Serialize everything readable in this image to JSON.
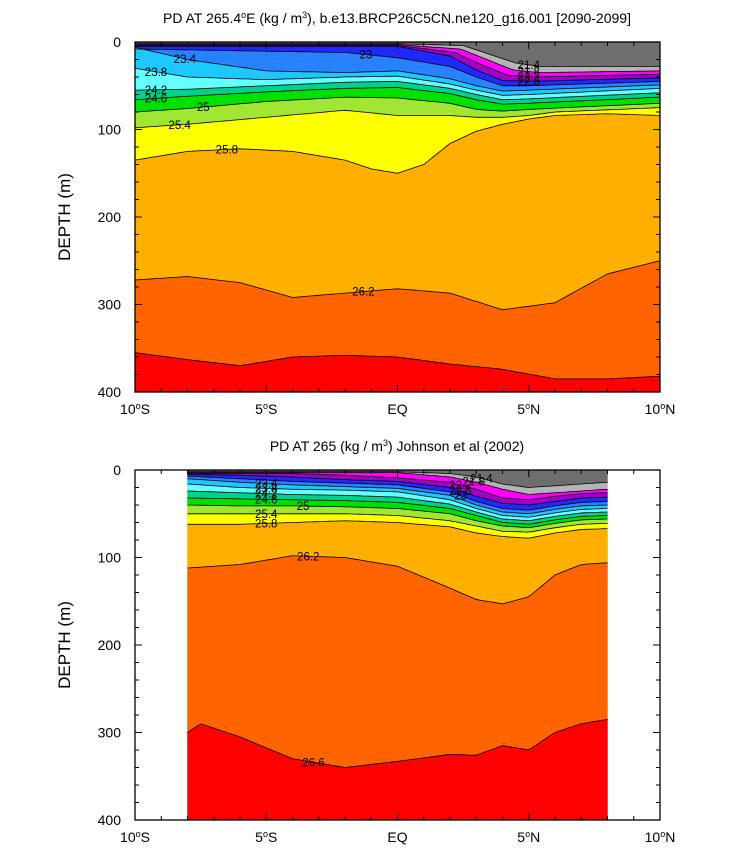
{
  "chart_data": [
    {
      "type": "contour",
      "title_main": "PD AT 265.4",
      "title_deg": "o",
      "title_rest_a": "E (kg / m",
      "title_sup": "3",
      "title_rest_b": "), b.e13.BRCP26C5CN.ne120_g16.001 [2090-2099]",
      "ylabel": "DEPTH (m)",
      "xlim": [
        -10,
        10
      ],
      "ylim": [
        0,
        400
      ],
      "x_ticks": [
        {
          "value": -10,
          "label": "10",
          "suffix": "S"
        },
        {
          "value": -5,
          "label": "5",
          "suffix": "S"
        },
        {
          "value": 0,
          "label": "EQ",
          "suffix": ""
        },
        {
          "value": 5,
          "label": "5",
          "suffix": "N"
        },
        {
          "value": 10,
          "label": "10",
          "suffix": "N"
        }
      ],
      "y_ticks": [
        0,
        100,
        200,
        300,
        400
      ],
      "data_xrange": [
        -10,
        10
      ],
      "contour_levels": [
        21.4,
        21.8,
        22.2,
        22.6,
        23.0,
        23.4,
        23.8,
        24.2,
        24.6,
        25.0,
        25.4,
        25.8,
        26.2,
        26.6
      ],
      "contours": [
        {
          "level": 21.4,
          "x": [
            -10,
            0,
            2.5,
            3.5,
            4.5,
            5.5,
            10
          ],
          "depth": [
            2,
            2,
            4,
            14,
            24,
            28,
            28
          ],
          "label": "21.4",
          "label_x": 5.0
        },
        {
          "level": 21.8,
          "x": [
            -10,
            0,
            2.4,
            3.4,
            4.4,
            5.4,
            10
          ],
          "depth": [
            3,
            3,
            8,
            20,
            32,
            35,
            33
          ],
          "label": "21.8",
          "label_x": 5.0
        },
        {
          "level": 22.2,
          "x": [
            -10,
            0,
            2.2,
            3.2,
            4.2,
            5.2,
            10
          ],
          "depth": [
            4,
            4,
            12,
            26,
            38,
            40,
            37
          ],
          "label": "22.2",
          "label_x": 5.0
        },
        {
          "level": 22.6,
          "x": [
            -10,
            0,
            2.0,
            3.0,
            4.0,
            5.0,
            10
          ],
          "depth": [
            5,
            5,
            16,
            32,
            44,
            45,
            41
          ],
          "label": "22.6",
          "label_x": 5.0
        },
        {
          "level": 23.0,
          "x": [
            -10,
            -2,
            0,
            2,
            3,
            4,
            5,
            10
          ],
          "depth": [
            8,
            12,
            18,
            28,
            40,
            50,
            50,
            45
          ],
          "label": "23",
          "label_x": -1.2
        },
        {
          "level": 23.4,
          "x": [
            -10,
            -8,
            -5,
            -2,
            0,
            2,
            3,
            4,
            5,
            10
          ],
          "depth": [
            6,
            20,
            33,
            35,
            33,
            42,
            50,
            56,
            55,
            49
          ],
          "label": "23.4",
          "label_x": -8.1
        },
        {
          "level": 23.8,
          "x": [
            -10,
            -8,
            -5,
            -2,
            0,
            2,
            3,
            4,
            5,
            10
          ],
          "depth": [
            30,
            40,
            43,
            40,
            39,
            48,
            55,
            61,
            60,
            53
          ],
          "label": "23.8",
          "label_x": -9.2
        },
        {
          "level": 24.2,
          "x": [
            -10,
            -8,
            -5,
            -2,
            0,
            2,
            3,
            4,
            5,
            10
          ],
          "depth": [
            55,
            54,
            50,
            46,
            45,
            53,
            60,
            66,
            65,
            58
          ],
          "label": "24.2",
          "label_x": -9.2
        },
        {
          "level": 24.6,
          "x": [
            -10,
            -8,
            -5,
            -2,
            0,
            2,
            3,
            4,
            5,
            10
          ],
          "depth": [
            66,
            62,
            57,
            53,
            52,
            59,
            66,
            71,
            70,
            63
          ],
          "label": "24.6",
          "label_x": -9.2
        },
        {
          "level": 25.0,
          "x": [
            -10,
            -8,
            -5,
            -2,
            0,
            2,
            3,
            4,
            5,
            10
          ],
          "depth": [
            80,
            76,
            68,
            63,
            64,
            70,
            77,
            79,
            77,
            70
          ],
          "label": "25",
          "label_x": -7.4
        },
        {
          "level": 25.4,
          "x": [
            -10,
            -8,
            -5,
            -2,
            0,
            2,
            3,
            4,
            5,
            6,
            10
          ],
          "depth": [
            98,
            94,
            86,
            78,
            84,
            84,
            86,
            86,
            84,
            80,
            75
          ],
          "label": "25.4",
          "label_x": -8.3
        },
        {
          "level": 25.8,
          "x": [
            -10,
            -8,
            -6,
            -4,
            -2,
            -1,
            0,
            1,
            2,
            3,
            4,
            5,
            6,
            8,
            10
          ],
          "depth": [
            135,
            125,
            122,
            125,
            135,
            145,
            150,
            140,
            116,
            102,
            94,
            88,
            84,
            82,
            84
          ],
          "label": "25.8",
          "label_x": -6.5
        },
        {
          "level": 26.2,
          "x": [
            -10,
            -8,
            -6,
            -4,
            -2,
            0,
            2,
            4,
            6,
            8,
            10
          ],
          "depth": [
            272,
            268,
            275,
            292,
            287,
            282,
            287,
            306,
            298,
            265,
            250
          ],
          "label": "26.2",
          "label_x": -1.3
        },
        {
          "level": 26.6,
          "x": [
            -10,
            -8,
            -6,
            -4,
            -2,
            0,
            2,
            4,
            6,
            8,
            10
          ],
          "depth": [
            355,
            363,
            370,
            360,
            358,
            360,
            368,
            374,
            385,
            385,
            382
          ],
          "label": "",
          "label_x": 0
        }
      ],
      "fill_colors": [
        "#6e6e6e",
        "#b4b4b4",
        "#ff00ff",
        "#a000c8",
        "#1e28ff",
        "#2882ff",
        "#1ec8ff",
        "#64ffff",
        "#00d28c",
        "#00e100",
        "#a0e632",
        "#ffff00",
        "#ffaf00",
        "#ff6400",
        "#ff0000",
        "#d20000"
      ]
    },
    {
      "type": "contour",
      "title_main": "PD AT 265 (kg / m",
      "title_deg": "",
      "title_rest_a": "",
      "title_sup": "3",
      "title_rest_b": ") Johnson et al (2002)",
      "ylabel": "DEPTH (m)",
      "xlim": [
        -10,
        10
      ],
      "ylim": [
        0,
        400
      ],
      "x_ticks": [
        {
          "value": -10,
          "label": "10",
          "suffix": "S"
        },
        {
          "value": -5,
          "label": "5",
          "suffix": "S"
        },
        {
          "value": 0,
          "label": "EQ",
          "suffix": ""
        },
        {
          "value": 5,
          "label": "5",
          "suffix": "N"
        },
        {
          "value": 10,
          "label": "10",
          "suffix": "N"
        }
      ],
      "y_ticks": [
        0,
        100,
        200,
        300,
        400
      ],
      "data_xrange": [
        -8,
        8
      ],
      "contour_levels": [
        21.4,
        21.8,
        22.2,
        22.6,
        23.0,
        23.4,
        23.8,
        24.2,
        24.6,
        25.0,
        25.4,
        25.8,
        26.2,
        26.6
      ],
      "contours": [
        {
          "level": 21.4,
          "x": [
            -8,
            0,
            2,
            3,
            4,
            5,
            6,
            7,
            8
          ],
          "depth": [
            2,
            2,
            4,
            8,
            16,
            20,
            18,
            16,
            14
          ],
          "label": "21.4",
          "label_x": 3.2
        },
        {
          "level": 21.8,
          "x": [
            -8,
            0,
            2,
            3,
            4,
            5,
            6,
            7,
            8
          ],
          "depth": [
            3,
            3,
            8,
            14,
            22,
            28,
            26,
            24,
            22
          ],
          "label": "21.8",
          "label_x": 2.9
        },
        {
          "level": 22.2,
          "x": [
            -8,
            -6,
            -4,
            -2,
            0,
            2,
            3,
            4,
            5,
            6,
            7,
            8
          ],
          "depth": [
            4,
            4,
            4,
            6,
            9,
            14,
            22,
            32,
            34,
            30,
            27,
            26
          ],
          "label": "22.2",
          "label_x": 2.4
        },
        {
          "level": 22.6,
          "x": [
            -8,
            -6,
            -4,
            -2,
            0,
            2,
            3,
            4,
            5,
            6,
            7,
            8
          ],
          "depth": [
            5,
            6,
            8,
            11,
            13,
            20,
            30,
            38,
            40,
            36,
            32,
            31
          ],
          "label": "22.6",
          "label_x": 2.4
        },
        {
          "level": 23.0,
          "x": [
            -8,
            -6,
            -4,
            -2,
            0,
            2,
            3,
            4,
            5,
            6,
            7,
            8
          ],
          "depth": [
            7,
            10,
            13,
            15,
            17,
            25,
            36,
            44,
            46,
            41,
            37,
            36
          ],
          "label": "23",
          "label_x": 2.4
        },
        {
          "level": 23.4,
          "x": [
            -8,
            -6,
            -4,
            -2,
            0,
            2,
            3,
            4,
            5,
            6,
            7,
            8
          ],
          "depth": [
            10,
            14,
            17,
            19,
            21,
            29,
            40,
            48,
            50,
            45,
            41,
            40
          ],
          "label": "23.4",
          "label_x": -5.0
        },
        {
          "level": 23.8,
          "x": [
            -8,
            -6,
            -4,
            -2,
            0,
            2,
            3,
            4,
            5,
            6,
            7,
            8
          ],
          "depth": [
            16,
            20,
            22,
            23,
            25,
            34,
            44,
            52,
            54,
            49,
            45,
            44
          ],
          "label": "23.8",
          "label_x": -5.0
        },
        {
          "level": 24.2,
          "x": [
            -8,
            -6,
            -4,
            -2,
            0,
            2,
            3,
            4,
            5,
            6,
            7,
            8
          ],
          "depth": [
            24,
            26,
            28,
            29,
            31,
            39,
            48,
            56,
            58,
            53,
            49,
            48
          ],
          "label": "24.2",
          "label_x": -5.0
        },
        {
          "level": 24.6,
          "x": [
            -8,
            -6,
            -4,
            -2,
            0,
            2,
            3,
            4,
            5,
            6,
            7,
            8
          ],
          "depth": [
            32,
            33,
            34,
            35,
            37,
            44,
            52,
            60,
            62,
            57,
            53,
            52
          ],
          "label": "24.6",
          "label_x": -5.0
        },
        {
          "level": 25.0,
          "x": [
            -8,
            -6,
            -4,
            -2,
            0,
            2,
            3,
            4,
            5,
            6,
            7,
            8
          ],
          "depth": [
            40,
            41,
            41,
            42,
            44,
            50,
            58,
            64,
            66,
            61,
            57,
            56
          ],
          "label": "25",
          "label_x": -3.6
        },
        {
          "level": 25.4,
          "x": [
            -8,
            -6,
            -4,
            -2,
            0,
            2,
            3,
            4,
            5,
            6,
            7,
            8
          ],
          "depth": [
            50,
            50,
            50,
            50,
            52,
            58,
            64,
            70,
            71,
            66,
            62,
            61
          ],
          "label": "25.4",
          "label_x": -5.0
        },
        {
          "level": 25.8,
          "x": [
            -8,
            -6,
            -4,
            -2,
            0,
            2,
            3,
            4,
            5,
            6,
            7,
            8
          ],
          "depth": [
            62,
            62,
            60,
            58,
            60,
            65,
            72,
            76,
            78,
            72,
            68,
            67
          ],
          "label": "25.8",
          "label_x": -5.0
        },
        {
          "level": 26.2,
          "x": [
            -8,
            -6,
            -4,
            -2,
            0,
            2,
            3,
            4,
            5,
            6,
            7,
            8
          ],
          "depth": [
            112,
            108,
            98,
            100,
            110,
            135,
            148,
            153,
            145,
            120,
            108,
            106
          ],
          "label": "26.2",
          "label_x": -3.4
        },
        {
          "level": 26.6,
          "x": [
            -8,
            -7.5,
            -6,
            -4,
            -2,
            0,
            2,
            3,
            4,
            5,
            6,
            7,
            8
          ],
          "depth": [
            300,
            290,
            305,
            330,
            340,
            333,
            325,
            326,
            315,
            320,
            300,
            290,
            285
          ],
          "label": "26.6",
          "label_x": -3.2
        }
      ],
      "fill_colors": [
        "#6e6e6e",
        "#b4b4b4",
        "#ff00ff",
        "#a000c8",
        "#1e28ff",
        "#2882ff",
        "#1ec8ff",
        "#64ffff",
        "#00d28c",
        "#00e100",
        "#a0e632",
        "#ffff00",
        "#ffaf00",
        "#ff6400",
        "#ff0000",
        "#d20000"
      ]
    }
  ]
}
